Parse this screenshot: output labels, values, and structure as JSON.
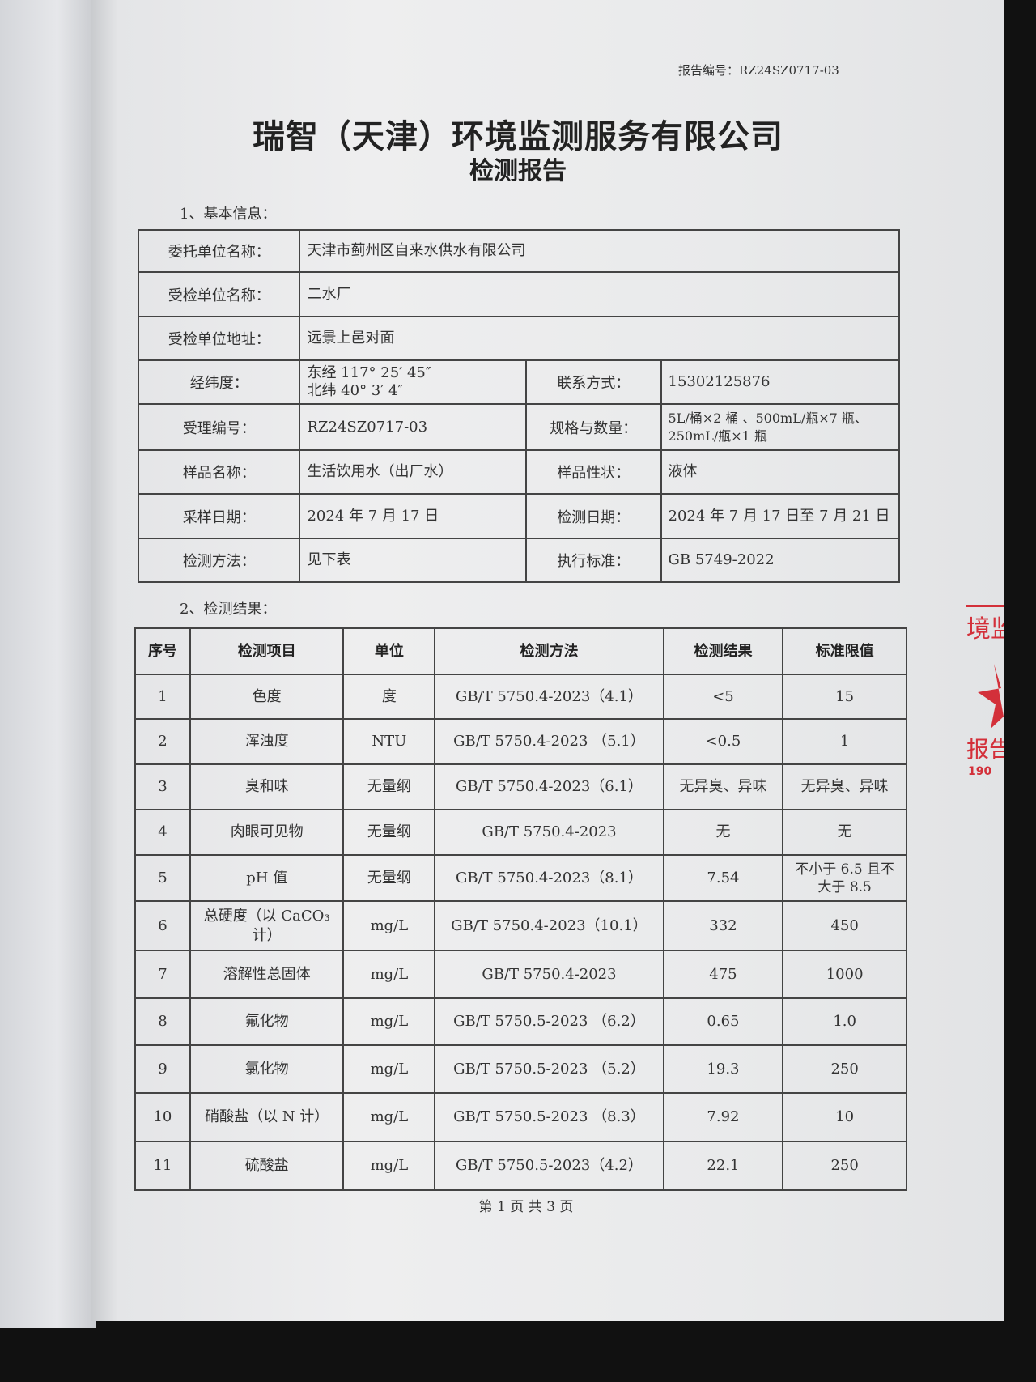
{
  "header": {
    "report_no_label": "报告编号：",
    "report_no": "RZ24SZ0717-03"
  },
  "title": "瑞智（天津）环境监测服务有限公司",
  "subtitle": "检测报告",
  "section1": "1、基本信息：",
  "basic_info": {
    "client_label": "委托单位名称：",
    "client": "天津市蓟州区自来水供水有限公司",
    "inspected_label": "受检单位名称：",
    "inspected": "二水厂",
    "address_label": "受检单位地址：",
    "address": "远景上邑对面",
    "coords_label": "经纬度：",
    "longitude": "东经 117° 25′ 45″",
    "latitude": "北纬 40° 3′ 4″",
    "contact_label": "联系方式：",
    "contact": "15302125876",
    "accept_no_label": "受理编号：",
    "accept_no": "RZ24SZ0717-03",
    "spec_label": "规格与数量：",
    "spec_line1": "5L/桶×2 桶 、500mL/瓶×7 瓶、",
    "spec_line2": "250mL/瓶×1 瓶",
    "sample_name_label": "样品名称：",
    "sample_name": "生活饮用水（出厂水）",
    "sample_state_label": "样品性状：",
    "sample_state": "液体",
    "sampling_date_label": "采样日期：",
    "sampling_date": "2024 年 7 月 17 日",
    "test_date_label": "检测日期：",
    "test_date": "2024 年 7 月 17 日至 7 月 21 日",
    "method_label": "检测方法：",
    "method": "见下表",
    "standard_label": "执行标准：",
    "standard": "GB 5749-2022"
  },
  "section2": "2、检测结果：",
  "results": {
    "headers": [
      "序号",
      "检测项目",
      "单位",
      "检测方法",
      "检测结果",
      "标准限值"
    ],
    "rows": [
      [
        "1",
        "色度",
        "度",
        "GB/T 5750.4-2023（4.1）",
        "<5",
        "15"
      ],
      [
        "2",
        "浑浊度",
        "NTU",
        "GB/T 5750.4-2023 （5.1）",
        "<0.5",
        "1"
      ],
      [
        "3",
        "臭和味",
        "无量纲",
        "GB/T 5750.4-2023（6.1）",
        "无异臭、异味",
        "无异臭、异味"
      ],
      [
        "4",
        "肉眼可见物",
        "无量纲",
        "GB/T 5750.4-2023",
        "无",
        "无"
      ],
      [
        "5",
        "pH 值",
        "无量纲",
        "GB/T 5750.4-2023（8.1）",
        "7.54",
        "不小于 6.5 且不大于 8.5"
      ],
      [
        "6",
        "总硬度（以 CaCO₃计）",
        "mg/L",
        "GB/T 5750.4-2023（10.1）",
        "332",
        "450"
      ],
      [
        "7",
        "溶解性总固体",
        "mg/L",
        "GB/T 5750.4-2023",
        "475",
        "1000"
      ],
      [
        "8",
        "氟化物",
        "mg/L",
        "GB/T 5750.5-2023 （6.2）",
        "0.65",
        "1.0"
      ],
      [
        "9",
        "氯化物",
        "mg/L",
        "GB/T 5750.5-2023 （5.2）",
        "19.3",
        "250"
      ],
      [
        "10",
        "硝酸盐（以 N 计）",
        "mg/L",
        "GB/T 5750.5-2023 （8.3）",
        "7.92",
        "10"
      ],
      [
        "11",
        "硫酸盐",
        "mg/L",
        "GB/T 5750.5-2023（4.2）",
        "22.1",
        "250"
      ]
    ]
  },
  "footer": "第 1 页 共 3 页",
  "stamp": {
    "text": "境监 报告 190",
    "color": "#d3303a"
  }
}
